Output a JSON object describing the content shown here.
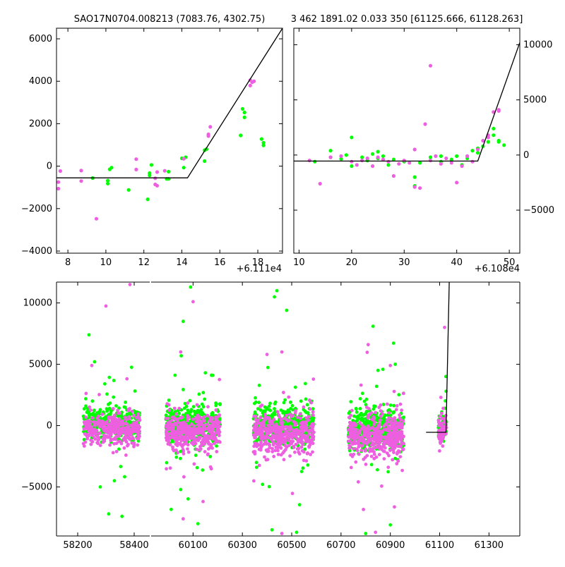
{
  "colors": {
    "band_g": "#00ff00",
    "band_r": "#ee5ee0",
    "model": "#000000",
    "background": "#ffffff"
  },
  "chart_data": [
    {
      "id": "panel-top-left",
      "type": "scatter",
      "title": "SAO17N0704.008213 (7083.76, 4302.75)",
      "xlim": [
        7.4,
        19.3
      ],
      "ylim": [
        -4100,
        6500
      ],
      "x_ticks": [
        8,
        10,
        12,
        14,
        16,
        18
      ],
      "y_ticks": [
        -4000,
        -2000,
        0,
        2000,
        4000,
        6000
      ],
      "x_tick_labels": [
        "8",
        "10",
        "12",
        "14",
        "16",
        "18"
      ],
      "y_tick_labels": [
        "−4000",
        "−2000",
        "0",
        "2000",
        "4000",
        "6000"
      ],
      "x_offset_label": "+6.111e4",
      "y_axis_side": "left",
      "model": {
        "x": [
          7.4,
          14.3,
          19.3
        ],
        "y": [
          -550,
          -550,
          6500
        ]
      },
      "series": [
        {
          "name": "g",
          "color": "#00ff00",
          "points": [
            [
              9.3,
              -560
            ],
            [
              10.1,
              -680
            ],
            [
              10.1,
              -820
            ],
            [
              10.2,
              -150
            ],
            [
              10.3,
              -70
            ],
            [
              11.2,
              -1120
            ],
            [
              12.2,
              -1560
            ],
            [
              12.3,
              -430
            ],
            [
              12.3,
              -330
            ],
            [
              12.4,
              60
            ],
            [
              13.2,
              -600
            ],
            [
              13.3,
              -260
            ],
            [
              13.3,
              -600
            ],
            [
              14.0,
              370
            ],
            [
              14.1,
              -70
            ],
            [
              14.2,
              420
            ],
            [
              15.2,
              240
            ],
            [
              15.2,
              750
            ],
            [
              15.3,
              800
            ],
            [
              17.1,
              1450
            ],
            [
              17.2,
              2700
            ],
            [
              17.3,
              2530
            ],
            [
              17.3,
              2300
            ],
            [
              18.2,
              1280
            ],
            [
              18.3,
              1100
            ],
            [
              18.3,
              980
            ]
          ]
        },
        {
          "name": "r",
          "color": "#ee5ee0",
          "points": [
            [
              7.6,
              -230
            ],
            [
              7.5,
              -750
            ],
            [
              7.5,
              -1060
            ],
            [
              8.7,
              -210
            ],
            [
              8.7,
              -700
            ],
            [
              9.5,
              -2480
            ],
            [
              11.6,
              330
            ],
            [
              11.6,
              -160
            ],
            [
              12.6,
              -570
            ],
            [
              12.6,
              -860
            ],
            [
              12.7,
              -920
            ],
            [
              12.7,
              -280
            ],
            [
              13.1,
              -220
            ],
            [
              14.1,
              350
            ],
            [
              15.4,
              1500
            ],
            [
              15.5,
              1850
            ],
            [
              15.4,
              1420
            ],
            [
              17.6,
              3800
            ],
            [
              17.6,
              4050
            ],
            [
              17.8,
              4000
            ],
            [
              17.7,
              3950
            ]
          ]
        }
      ]
    },
    {
      "id": "panel-top-right",
      "type": "scatter",
      "title": "3 462 1891.02 0.033 350 [61125.666, 61128.263]",
      "xlim": [
        9,
        52
      ],
      "ylim": [
        -8900,
        11500
      ],
      "x_ticks": [
        10,
        20,
        30,
        40,
        50
      ],
      "y_ticks": [
        -5000,
        0,
        5000,
        10000
      ],
      "x_tick_labels": [
        "10",
        "20",
        "30",
        "40",
        "50"
      ],
      "y_tick_labels": [
        "−5000",
        "0",
        "5000",
        "10000"
      ],
      "x_offset_label": "+6.108e4",
      "y_axis_side": "right",
      "model": {
        "x": [
          9,
          44,
          52
        ],
        "y": [
          -550,
          -550,
          10200
        ]
      },
      "series": [
        {
          "name": "g",
          "color": "#00ff00",
          "points": [
            [
              13,
              -600
            ],
            [
              16,
              400
            ],
            [
              16,
              -200
            ],
            [
              18,
              -350
            ],
            [
              19,
              0
            ],
            [
              20,
              -1000
            ],
            [
              20,
              1600
            ],
            [
              22,
              -200
            ],
            [
              23,
              -500
            ],
            [
              24,
              100
            ],
            [
              25,
              -300
            ],
            [
              25,
              300
            ],
            [
              26,
              -100
            ],
            [
              27,
              -900
            ],
            [
              28,
              -400
            ],
            [
              30,
              -600
            ],
            [
              32,
              -2000
            ],
            [
              32,
              -2800
            ],
            [
              33,
              -700
            ],
            [
              35,
              -200
            ],
            [
              37,
              -100
            ],
            [
              37,
              -600
            ],
            [
              39,
              -400
            ],
            [
              40,
              -100
            ],
            [
              41,
              -900
            ],
            [
              42,
              -300
            ],
            [
              43,
              400
            ],
            [
              44,
              200
            ],
            [
              44,
              600
            ],
            [
              45,
              800
            ],
            [
              46,
              1200
            ],
            [
              47,
              1800
            ],
            [
              47,
              2400
            ],
            [
              48,
              1200
            ],
            [
              48,
              1300
            ],
            [
              49,
              900
            ]
          ]
        },
        {
          "name": "r",
          "color": "#ee5ee0",
          "points": [
            [
              12,
              -500
            ],
            [
              14,
              -2600
            ],
            [
              16,
              -200
            ],
            [
              18,
              -100
            ],
            [
              20,
              -600
            ],
            [
              21,
              -900
            ],
            [
              22,
              -500
            ],
            [
              23,
              -300
            ],
            [
              24,
              -1000
            ],
            [
              25,
              -200
            ],
            [
              26,
              -400
            ],
            [
              27,
              -600
            ],
            [
              28,
              -1900
            ],
            [
              29,
              -800
            ],
            [
              30,
              -500
            ],
            [
              31,
              -700
            ],
            [
              32,
              500
            ],
            [
              32,
              -2900
            ],
            [
              33,
              -3000
            ],
            [
              34,
              2800
            ],
            [
              35,
              8100
            ],
            [
              35,
              -500
            ],
            [
              36,
              -100
            ],
            [
              37,
              -800
            ],
            [
              38,
              -300
            ],
            [
              39,
              -700
            ],
            [
              40,
              -2500
            ],
            [
              41,
              -1000
            ],
            [
              42,
              -100
            ],
            [
              43,
              -600
            ],
            [
              44,
              500
            ],
            [
              45,
              1300
            ],
            [
              46,
              1600
            ],
            [
              46,
              1800
            ],
            [
              47,
              3900
            ],
            [
              48,
              4100
            ],
            [
              48,
              4000
            ]
          ]
        }
      ]
    },
    {
      "id": "panel-bottom",
      "type": "scatter",
      "title": "",
      "broken_axis": true,
      "segments": [
        {
          "xlim": [
            58125,
            58455
          ]
        },
        {
          "xlim": [
            59930,
            61425
          ]
        }
      ],
      "ylim": [
        -9000,
        11700
      ],
      "x_ticks": [
        58200,
        58400,
        60100,
        60300,
        60500,
        60700,
        60900,
        61100,
        61300
      ],
      "x_tick_labels": [
        "58200",
        "58400",
        "60100",
        "60300",
        "60500",
        "60700",
        "60900",
        "61100",
        "61300"
      ],
      "y_ticks": [
        -5000,
        0,
        5000,
        10000
      ],
      "y_tick_labels": [
        "−5000",
        "0",
        "5000",
        "10000"
      ],
      "model": {
        "x": [
          61045,
          61120,
          61125.7,
          61139
        ],
        "y": [
          -550,
          -550,
          -550,
          11700
        ]
      },
      "clusters": [
        {
          "x": [
            58220,
            58420
          ],
          "center_g": 150,
          "center_r": -350,
          "sd": 620,
          "n": 340,
          "outliers": [
            [
              58250,
              4900
            ],
            [
              58260,
              5200
            ],
            [
              58280,
              -5000
            ],
            [
              58300,
              9750
            ],
            [
              58310,
              -7200
            ],
            [
              58330,
              -4500
            ],
            [
              58385,
              11500
            ],
            [
              58240,
              7400
            ]
          ]
        },
        {
          "x": [
            59990,
            60210
          ],
          "center_g": 100,
          "center_r": -500,
          "sd": 700,
          "n": 420,
          "outliers": [
            [
              60050,
              6000
            ],
            [
              60060,
              8500
            ],
            [
              60090,
              11300
            ],
            [
              60100,
              10100
            ],
            [
              60150,
              4300
            ],
            [
              60180,
              4100
            ],
            [
              60060,
              -7600
            ],
            [
              60120,
              -8000
            ]
          ]
        },
        {
          "x": [
            60345,
            60590
          ],
          "center_g": 0,
          "center_r": -650,
          "sd": 760,
          "n": 420,
          "outliers": [
            [
              60400,
              5800
            ],
            [
              60430,
              10500
            ],
            [
              60440,
              11000
            ],
            [
              60460,
              6000
            ],
            [
              60480,
              9400
            ],
            [
              60420,
              -8500
            ],
            [
              60460,
              -8800
            ],
            [
              60520,
              -8700
            ]
          ]
        },
        {
          "x": [
            60730,
            60955
          ],
          "center_g": -250,
          "center_r": -800,
          "sd": 820,
          "n": 420,
          "outliers": [
            [
              60810,
              6600
            ],
            [
              60830,
              8100
            ],
            [
              60850,
              4500
            ],
            [
              60900,
              4900
            ],
            [
              60920,
              5000
            ],
            [
              60800,
              -8800
            ],
            [
              60840,
              -8700
            ],
            [
              60900,
              -8100
            ]
          ]
        },
        {
          "x": [
            61095,
            61128
          ],
          "center_g": -200,
          "center_r": -400,
          "sd": 500,
          "n": 60,
          "outliers": [
            [
              61120,
              8000
            ],
            [
              61125,
              4000
            ],
            [
              61126,
              2800
            ],
            [
              61105,
              2300
            ]
          ]
        }
      ]
    }
  ]
}
